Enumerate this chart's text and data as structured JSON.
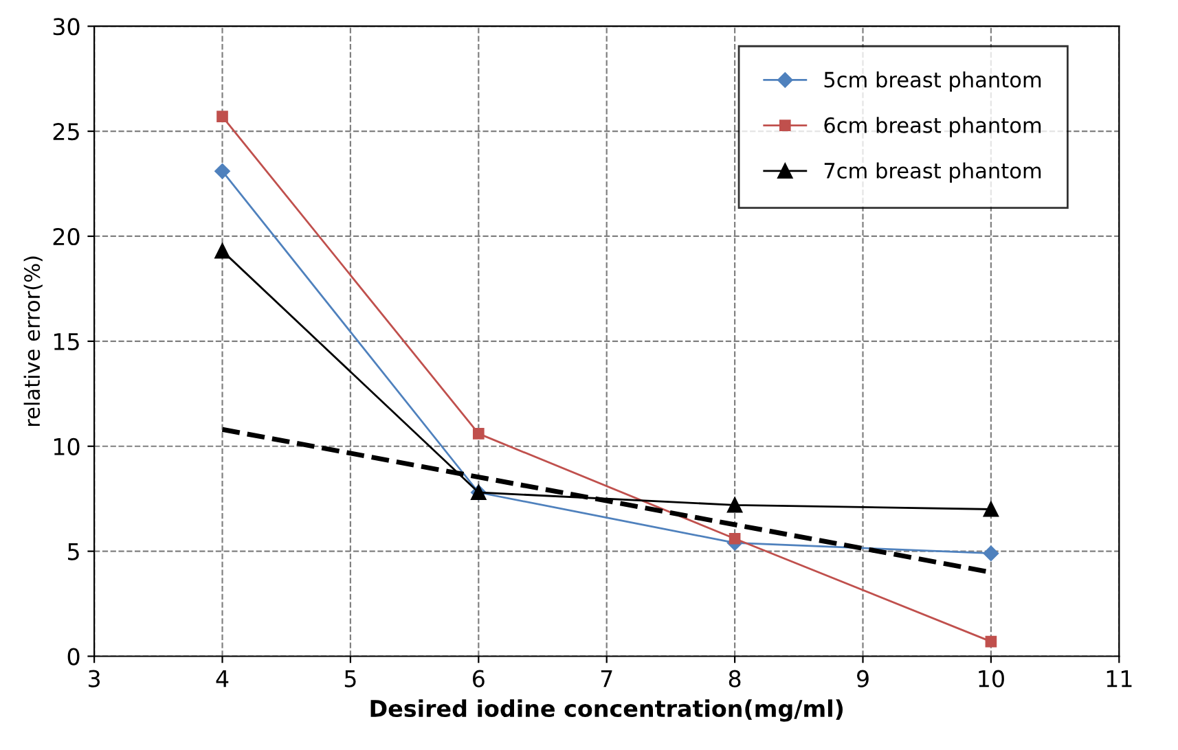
{
  "chart_data": {
    "type": "line",
    "xlabel": "Desired iodine concentration(mg/ml)",
    "ylabel": "relative error(%)",
    "x": [
      4,
      6,
      8,
      10
    ],
    "series": [
      {
        "name": "5cm breast phantom",
        "color": "#4f81bd",
        "marker": "diamond",
        "values": [
          23.1,
          7.8,
          5.4,
          4.9
        ]
      },
      {
        "name": "6cm breast phantom",
        "color": "#c0504d",
        "marker": "square",
        "values": [
          25.7,
          10.6,
          5.6,
          0.7
        ]
      },
      {
        "name": "7cm breast phantom",
        "color": "#000000",
        "marker": "triangle",
        "values": [
          19.3,
          7.8,
          7.2,
          7.0
        ]
      },
      {
        "color": "#000000",
        "marker": "none",
        "line_style": "dashed",
        "x": [
          4,
          10
        ],
        "values": [
          10.8,
          4.0
        ]
      }
    ],
    "xlim": [
      3,
      11
    ],
    "xticks": [
      3,
      4,
      5,
      6,
      7,
      8,
      9,
      10,
      11
    ],
    "ylim": [
      0,
      30
    ],
    "yticks": [
      0,
      5,
      10,
      15,
      20,
      25,
      30
    ],
    "grid": true,
    "legend": "top right",
    "line_style": "solid"
  }
}
